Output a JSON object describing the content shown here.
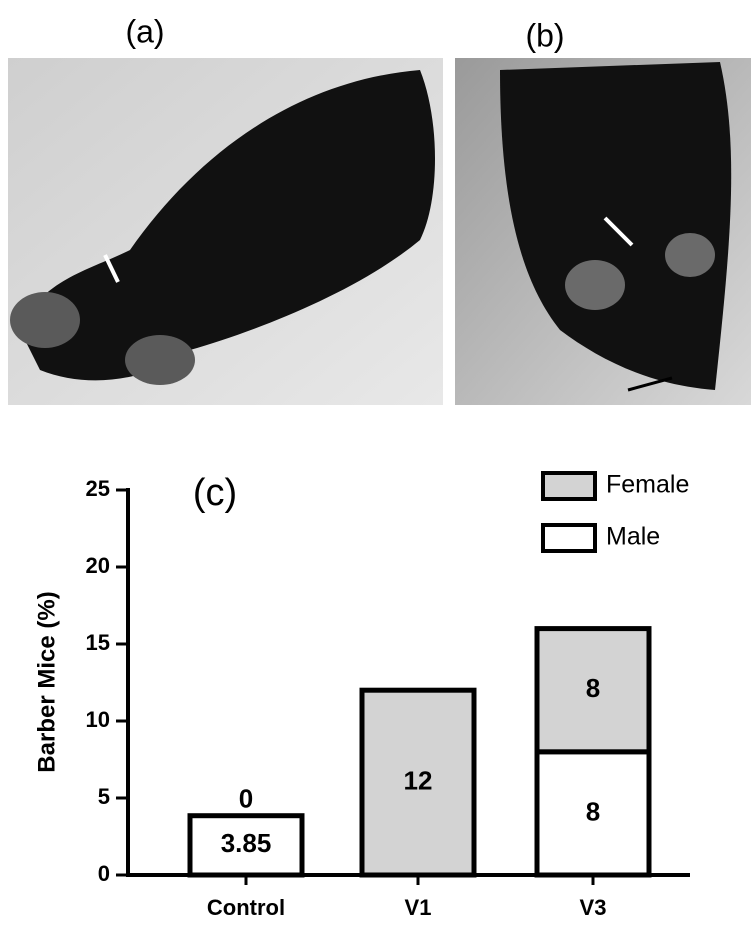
{
  "panel_labels": {
    "a": "(a)",
    "b": "(b)"
  },
  "chart_data": {
    "type": "bar",
    "stacked": true,
    "annotation": "(c)",
    "ylabel": "Barber Mice (%)",
    "categories": [
      "Control",
      "V1",
      "V3"
    ],
    "series": [
      {
        "name": "Male",
        "color": "#ffffff",
        "values": [
          3.85,
          0,
          8
        ]
      },
      {
        "name": "Female",
        "color": "#d3d3d3",
        "values": [
          0,
          12,
          8
        ]
      }
    ],
    "ylim": [
      0,
      25
    ],
    "yticks": [
      0,
      5,
      10,
      15,
      20,
      25
    ],
    "grid": false,
    "legend": "top-right"
  }
}
